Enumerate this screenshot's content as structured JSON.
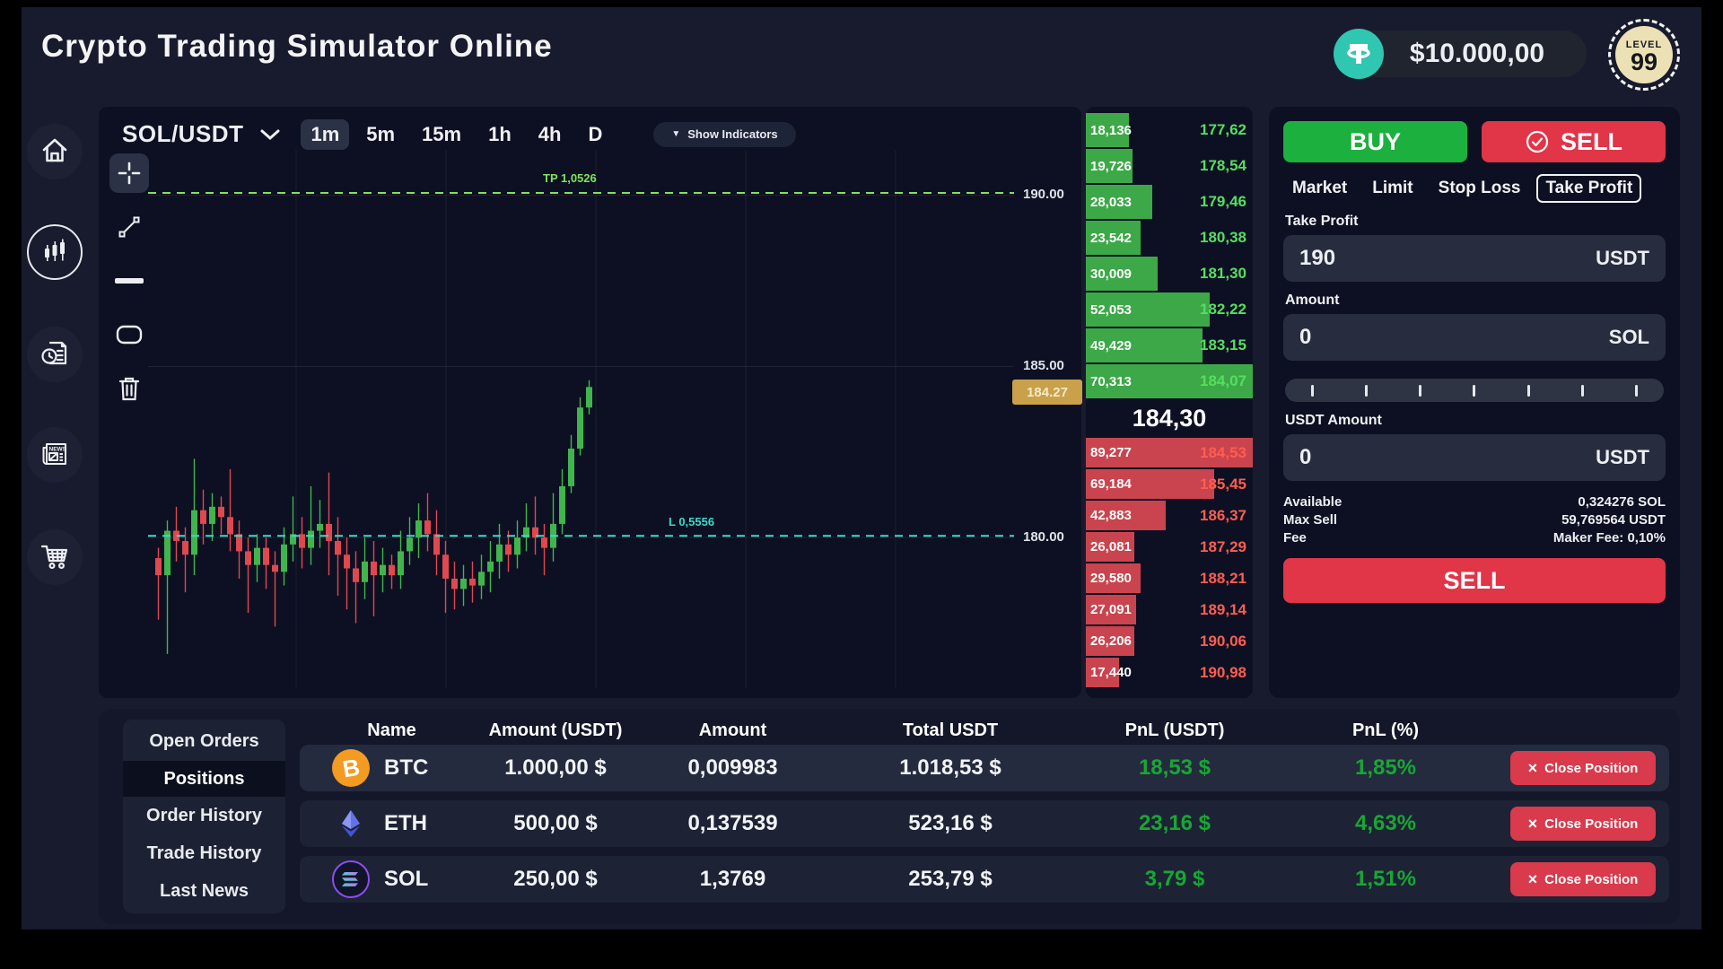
{
  "header": {
    "title": "Crypto Trading Simulator Online",
    "balance": "$10.000,00",
    "level_label": "LEVEL",
    "level_value": "99"
  },
  "sidebar": {
    "items": [
      {
        "id": "home",
        "icon": "home-icon",
        "active": false
      },
      {
        "id": "trading",
        "icon": "candlestick-chart-icon",
        "active": true
      },
      {
        "id": "order-history",
        "icon": "clock-document-icon",
        "active": false
      },
      {
        "id": "news",
        "icon": "newspaper-icon",
        "active": false
      },
      {
        "id": "market",
        "icon": "shopping-cart-icon",
        "active": false
      }
    ]
  },
  "chart": {
    "pair": "SOL/USDT",
    "timeframes": [
      "1m",
      "5m",
      "15m",
      "1h",
      "4h",
      "D"
    ],
    "active_timeframe": "1m",
    "indicators_icon": "▼",
    "indicators_button": "Show Indicators",
    "tp_line_label": "TP 1,0526",
    "liq_line_label": "L 0,5556",
    "current_price": "184.27",
    "axis_labels": [
      "190.00",
      "185.00",
      "180.00"
    ],
    "tools": [
      "crosshair",
      "trend-line",
      "horizontal-line",
      "rectangle",
      "delete"
    ]
  },
  "chart_data": {
    "type": "candlestick",
    "pair": "SOL/USDT",
    "interval": "1m",
    "ylim": [
      175.6,
      191.33
    ],
    "y_gridlines": [
      190,
      185,
      180
    ],
    "tp_line_price": 190.07,
    "liq_line_price": 180.05,
    "last_price": 184.27,
    "candles_ohlc": [
      [
        179.4,
        179.7,
        177.6,
        178.9
      ],
      [
        178.9,
        180.5,
        176.6,
        180.2
      ],
      [
        180.2,
        180.9,
        179.3,
        179.9
      ],
      [
        179.9,
        180.3,
        178.4,
        179.5
      ],
      [
        179.5,
        182.3,
        178.9,
        180.8
      ],
      [
        180.8,
        181.4,
        179.8,
        180.4
      ],
      [
        180.4,
        181.3,
        179.9,
        180.9
      ],
      [
        180.9,
        181.2,
        180.1,
        180.6
      ],
      [
        180.6,
        182.0,
        179.6,
        180.1
      ],
      [
        180.1,
        180.5,
        178.8,
        179.6
      ],
      [
        179.6,
        180.0,
        177.8,
        179.2
      ],
      [
        179.2,
        180.1,
        178.7,
        179.7
      ],
      [
        179.7,
        180.0,
        178.5,
        179.2
      ],
      [
        179.2,
        179.6,
        177.4,
        179.0
      ],
      [
        179.0,
        180.3,
        178.6,
        179.8
      ],
      [
        179.8,
        181.2,
        179.3,
        180.1
      ],
      [
        180.1,
        180.6,
        179.1,
        179.7
      ],
      [
        179.7,
        181.5,
        179.2,
        180.2
      ],
      [
        180.2,
        181.1,
        179.7,
        180.4
      ],
      [
        180.4,
        181.9,
        178.9,
        179.9
      ],
      [
        179.9,
        180.6,
        178.3,
        179.5
      ],
      [
        179.5,
        180.0,
        177.9,
        179.1
      ],
      [
        179.1,
        179.6,
        177.5,
        178.7
      ],
      [
        178.7,
        180.0,
        178.2,
        179.3
      ],
      [
        179.3,
        179.9,
        177.7,
        178.9
      ],
      [
        178.9,
        179.7,
        178.4,
        179.2
      ],
      [
        179.2,
        179.5,
        178.5,
        178.9
      ],
      [
        178.9,
        180.2,
        178.5,
        179.6
      ],
      [
        179.6,
        180.6,
        179.2,
        180.0
      ],
      [
        180.0,
        181.0,
        179.4,
        180.5
      ],
      [
        180.5,
        181.3,
        179.6,
        180.1
      ],
      [
        180.1,
        180.8,
        178.9,
        179.5
      ],
      [
        179.5,
        179.9,
        177.8,
        178.8
      ],
      [
        178.8,
        179.3,
        177.9,
        178.5
      ],
      [
        178.5,
        179.2,
        178.0,
        178.8
      ],
      [
        178.8,
        179.3,
        178.1,
        178.6
      ],
      [
        178.6,
        179.5,
        178.2,
        179.0
      ],
      [
        179.0,
        179.9,
        178.4,
        179.3
      ],
      [
        179.3,
        180.4,
        178.8,
        179.8
      ],
      [
        179.8,
        180.2,
        179.0,
        179.5
      ],
      [
        179.5,
        180.5,
        179.1,
        180.0
      ],
      [
        180.0,
        181.0,
        179.6,
        180.3
      ],
      [
        180.3,
        181.2,
        179.5,
        180.0
      ],
      [
        180.0,
        180.4,
        178.9,
        179.7
      ],
      [
        179.7,
        181.3,
        179.3,
        180.4
      ],
      [
        180.4,
        182.0,
        180.1,
        181.5
      ],
      [
        181.5,
        183.0,
        181.3,
        182.6
      ],
      [
        182.6,
        184.1,
        182.4,
        183.8
      ],
      [
        183.8,
        184.6,
        183.6,
        184.4
      ]
    ]
  },
  "order_book": {
    "bids": [
      {
        "volume": "18,136",
        "price": "177,62"
      },
      {
        "volume": "19,726",
        "price": "178,54"
      },
      {
        "volume": "28,033",
        "price": "179,46"
      },
      {
        "volume": "23,542",
        "price": "180,38"
      },
      {
        "volume": "30,009",
        "price": "181,30"
      },
      {
        "volume": "52,053",
        "price": "182,22"
      },
      {
        "volume": "49,429",
        "price": "183,15"
      },
      {
        "volume": "70,313",
        "price": "184,07"
      }
    ],
    "mid_price": "184,30",
    "asks": [
      {
        "volume": "89,277",
        "price": "184,53"
      },
      {
        "volume": "69,184",
        "price": "185,45"
      },
      {
        "volume": "42,883",
        "price": "186,37"
      },
      {
        "volume": "26,081",
        "price": "187,29"
      },
      {
        "volume": "29,580",
        "price": "188,21"
      },
      {
        "volume": "27,091",
        "price": "189,14"
      },
      {
        "volume": "26,206",
        "price": "190,06"
      },
      {
        "volume": "17,440",
        "price": "190,98"
      }
    ]
  },
  "trade_panel": {
    "buy_button": "BUY",
    "sell_button": "SELL",
    "order_types": [
      "Market",
      "Limit",
      "Stop Loss",
      "Take Profit"
    ],
    "active_order_type": "Take Profit",
    "take_profit_label": "Take Profit",
    "take_profit_value": "190",
    "take_profit_unit": "USDT",
    "amount_label": "Amount",
    "amount_value": "0",
    "amount_unit": "SOL",
    "slider_ticks": 7,
    "usdt_amount_label": "USDT Amount",
    "usdt_amount_value": "0",
    "usdt_amount_unit": "USDT",
    "info_rows": [
      {
        "label": "Available",
        "value": "0,324276 SOL"
      },
      {
        "label": "Max Sell",
        "value": "59,769564 USDT"
      },
      {
        "label": "Fee",
        "value": "Maker Fee: 0,10%"
      }
    ],
    "submit_button": "SELL"
  },
  "positions_panel": {
    "tabs": [
      "Open Orders",
      "Positions",
      "Order History",
      "Trade History",
      "Last News"
    ],
    "active_tab": "Positions",
    "columns": [
      "Name",
      "Amount (USDT)",
      "Amount",
      "Total USDT",
      "PnL (USDT)",
      "PnL (%)"
    ],
    "close_icon": "×",
    "close_button": "Close Position",
    "rows": [
      {
        "coin": "BTC",
        "icon": "btc-icon",
        "amount_usdt": "1.000,00 $",
        "amount": "0,009983",
        "total_usdt": "1.018,53 $",
        "pnl_usdt": "18,53 $",
        "pnl_pct": "1,85%"
      },
      {
        "coin": "ETH",
        "icon": "eth-icon",
        "amount_usdt": "500,00 $",
        "amount": "0,137539",
        "total_usdt": "523,16 $",
        "pnl_usdt": "23,16 $",
        "pnl_pct": "4,63%"
      },
      {
        "coin": "SOL",
        "icon": "sol-icon",
        "amount_usdt": "250,00 $",
        "amount": "1,3769",
        "total_usdt": "253,79 $",
        "pnl_usdt": "3,79 $",
        "pnl_pct": "1,51%"
      }
    ]
  },
  "colors": {
    "buy_green": "#1cb13e",
    "sell_red": "#e13548",
    "candle_green": "#41b54d",
    "candle_red": "#e0484f",
    "bid_bar": "#3da848",
    "ask_bar": "#c9444e",
    "pnl_green": "#17a733",
    "price_tag_gold": "#c9a14b",
    "tp_line": "#7fe35b",
    "liq_line": "#3cd9cb",
    "tether_teal": "#2fc7b2"
  }
}
